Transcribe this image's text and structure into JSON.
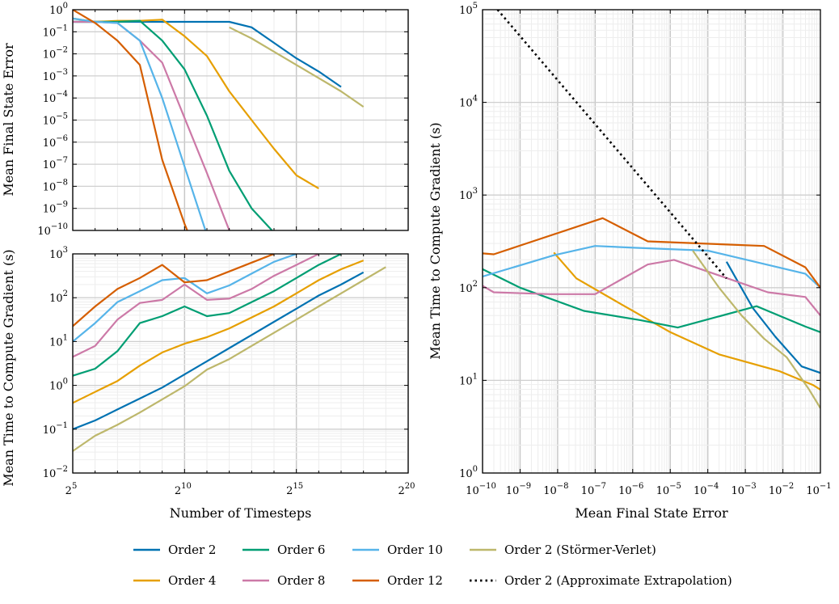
{
  "colors": {
    "Order 2": "#0072B2",
    "Order 4": "#E69F00",
    "Order 6": "#009E73",
    "Order 8": "#CC79A7",
    "Order 10": "#56B4E9",
    "Order 12": "#D55E00",
    "Order 2 (Störmer-Verlet)": "#BDB76B",
    "Order 2 (Approximate Extrapolation)": "#000000"
  },
  "chart_data": [
    {
      "id": "top-left",
      "type": "line",
      "title": "",
      "xlabel": "",
      "ylabel": "Mean Final State Error",
      "xscale": "log2",
      "yscale": "log10",
      "xlim_exp": [
        5,
        20
      ],
      "ylim_exp": [
        -10,
        0
      ],
      "xticks": [],
      "yticks": [
        {
          "base": "10",
          "exp": "0"
        },
        {
          "base": "10",
          "exp": "−1"
        },
        {
          "base": "10",
          "exp": "−2"
        },
        {
          "base": "10",
          "exp": "−3"
        },
        {
          "base": "10",
          "exp": "−4"
        },
        {
          "base": "10",
          "exp": "−5"
        },
        {
          "base": "10",
          "exp": "−6"
        },
        {
          "base": "10",
          "exp": "−7"
        },
        {
          "base": "10",
          "exp": "−8"
        },
        {
          "base": "10",
          "exp": "−9"
        },
        {
          "base": "10",
          "exp": "−10"
        }
      ],
      "series": [
        {
          "name": "Order 2",
          "x": [
            5,
            6,
            7,
            8,
            9,
            10,
            11,
            12,
            13,
            14,
            15,
            16,
            17
          ],
          "y": [
            -0.55,
            -0.55,
            -0.55,
            -0.55,
            -0.55,
            -0.55,
            -0.55,
            -0.55,
            -0.8,
            -1.5,
            -2.2,
            -2.8,
            -3.5
          ]
        },
        {
          "name": "Order 4",
          "x": [
            5,
            6,
            7,
            8,
            9,
            10,
            11,
            12,
            13,
            14,
            15,
            16
          ],
          "y": [
            -0.4,
            -0.55,
            -0.5,
            -0.5,
            -0.45,
            -1.2,
            -2.1,
            -3.7,
            -5.0,
            -6.3,
            -7.5,
            -8.1
          ]
        },
        {
          "name": "Order 6",
          "x": [
            5,
            6,
            7,
            8,
            9,
            10,
            11,
            12,
            13,
            14
          ],
          "y": [
            -0.55,
            -0.55,
            -0.55,
            -0.5,
            -1.4,
            -2.7,
            -4.8,
            -7.3,
            -9.0,
            -10.1
          ]
        },
        {
          "name": "Order 8",
          "x": [
            5,
            6,
            7,
            8,
            9,
            10,
            11,
            12
          ],
          "y": [
            -0.55,
            -0.55,
            -0.6,
            -1.4,
            -2.4,
            -4.9,
            -7.4,
            -10.0
          ]
        },
        {
          "name": "Order 10",
          "x": [
            5,
            6,
            7,
            8,
            9,
            10,
            11
          ],
          "y": [
            -0.4,
            -0.55,
            -0.6,
            -1.4,
            -4.0,
            -7.1,
            -10.2
          ]
        },
        {
          "name": "Order 12",
          "x": [
            5,
            6,
            7,
            8,
            9,
            10,
            10.2
          ],
          "y": [
            0,
            -0.6,
            -1.4,
            -2.5,
            -6.8,
            -9.7,
            -10.2
          ]
        },
        {
          "name": "Order 2 (Störmer-Verlet)",
          "x": [
            12,
            13,
            14,
            15,
            16,
            17,
            18
          ],
          "y": [
            -0.8,
            -1.3,
            -1.9,
            -2.5,
            -3.1,
            -3.7,
            -4.4
          ]
        }
      ]
    },
    {
      "id": "bottom-left",
      "type": "line",
      "title": "",
      "xlabel": "Number of Timesteps",
      "ylabel": "Mean Time to Compute Gradient (s)",
      "xscale": "log2",
      "yscale": "log10",
      "xlim_exp": [
        5,
        20
      ],
      "ylim_exp": [
        -2,
        3
      ],
      "xticks": [
        {
          "base": "2",
          "exp": "5"
        },
        {
          "base": "2",
          "exp": "10"
        },
        {
          "base": "2",
          "exp": "15"
        },
        {
          "base": "2",
          "exp": "20"
        }
      ],
      "yticks": [
        {
          "base": "10",
          "exp": "3"
        },
        {
          "base": "10",
          "exp": "2"
        },
        {
          "base": "10",
          "exp": "1"
        },
        {
          "base": "10",
          "exp": "0"
        },
        {
          "base": "10",
          "exp": "−1"
        },
        {
          "base": "10",
          "exp": "−2"
        }
      ],
      "series": [
        {
          "name": "Order 2",
          "x": [
            5,
            6,
            7,
            8,
            9,
            10,
            11,
            12,
            13,
            14,
            15,
            16,
            17,
            18
          ],
          "y": [
            -1.0,
            -0.8,
            -0.55,
            -0.3,
            -0.05,
            0.25,
            0.55,
            0.85,
            1.15,
            1.45,
            1.75,
            2.05,
            2.3,
            2.58
          ]
        },
        {
          "name": "Order 4",
          "x": [
            5,
            6,
            7,
            8,
            9,
            10,
            11,
            12,
            13,
            14,
            15,
            16,
            17,
            18
          ],
          "y": [
            -0.4,
            -0.15,
            0.1,
            0.45,
            0.75,
            0.95,
            1.1,
            1.3,
            1.55,
            1.8,
            2.1,
            2.4,
            2.65,
            2.85
          ]
        },
        {
          "name": "Order 6",
          "x": [
            5,
            6,
            7,
            8,
            9,
            10,
            11,
            12,
            13,
            14,
            15,
            16,
            17
          ],
          "y": [
            0.22,
            0.38,
            0.78,
            1.42,
            1.58,
            1.8,
            1.58,
            1.65,
            1.9,
            2.15,
            2.45,
            2.75,
            3.0
          ]
        },
        {
          "name": "Order 8",
          "x": [
            5,
            6,
            7,
            8,
            9,
            10,
            11,
            12,
            13,
            14,
            15,
            16
          ],
          "y": [
            0.65,
            0.9,
            1.5,
            1.88,
            1.95,
            2.3,
            1.95,
            1.98,
            2.2,
            2.5,
            2.75,
            3.0
          ]
        },
        {
          "name": "Order 10",
          "x": [
            5,
            6,
            7,
            8,
            9,
            10,
            11,
            12,
            13,
            14,
            15
          ],
          "y": [
            1.0,
            1.42,
            1.9,
            2.15,
            2.4,
            2.45,
            2.1,
            2.28,
            2.55,
            2.82,
            3.0
          ]
        },
        {
          "name": "Order 12",
          "x": [
            5,
            6,
            7,
            8,
            9,
            10,
            11,
            12,
            13,
            14
          ],
          "y": [
            1.35,
            1.8,
            2.2,
            2.45,
            2.75,
            2.35,
            2.4,
            2.6,
            2.8,
            3.0
          ]
        },
        {
          "name": "Order 2 (Störmer-Verlet)",
          "x": [
            5,
            6,
            7,
            8,
            9,
            10,
            11,
            12,
            13,
            14,
            15,
            16,
            17,
            18,
            19
          ],
          "y": [
            -1.5,
            -1.15,
            -0.9,
            -0.62,
            -0.32,
            -0.02,
            0.36,
            0.6,
            0.9,
            1.2,
            1.5,
            1.8,
            2.1,
            2.4,
            2.7
          ]
        }
      ]
    },
    {
      "id": "right",
      "type": "line",
      "title": "",
      "xlabel": "Mean Final State Error",
      "ylabel": "Mean Time to Compute Gradient (s)",
      "xscale": "log10",
      "yscale": "log10",
      "xlim_exp": [
        -10,
        -1
      ],
      "ylim_exp": [
        0,
        5
      ],
      "xticks": [
        {
          "base": "10",
          "exp": "−10"
        },
        {
          "base": "10",
          "exp": "−9"
        },
        {
          "base": "10",
          "exp": "−8"
        },
        {
          "base": "10",
          "exp": "−7"
        },
        {
          "base": "10",
          "exp": "−6"
        },
        {
          "base": "10",
          "exp": "−5"
        },
        {
          "base": "10",
          "exp": "−4"
        },
        {
          "base": "10",
          "exp": "−3"
        },
        {
          "base": "10",
          "exp": "−2"
        },
        {
          "base": "10",
          "exp": "−1"
        }
      ],
      "yticks": [
        {
          "base": "10",
          "exp": "5"
        },
        {
          "base": "10",
          "exp": "4"
        },
        {
          "base": "10",
          "exp": "3"
        },
        {
          "base": "10",
          "exp": "2"
        },
        {
          "base": "10",
          "exp": "1"
        },
        {
          "base": "10",
          "exp": "0"
        }
      ],
      "series": [
        {
          "name": "Order 2",
          "x": [
            -3.5,
            -2.8,
            -2.2,
            -1.5,
            -1.0
          ],
          "y": [
            2.28,
            1.78,
            1.47,
            1.15,
            1.08
          ]
        },
        {
          "name": "Order 4",
          "x": [
            -8.1,
            -7.5,
            -6.3,
            -5.0,
            -3.7,
            -2.1,
            -1.2,
            -1.0
          ],
          "y": [
            2.38,
            2.1,
            1.82,
            1.52,
            1.28,
            1.1,
            0.95,
            0.9
          ]
        },
        {
          "name": "Order 6",
          "x": [
            -10.0,
            -9.0,
            -7.3,
            -5.8,
            -4.8,
            -2.7,
            -1.4,
            -1.0
          ],
          "y": [
            2.2,
            2.0,
            1.75,
            1.65,
            1.57,
            1.8,
            1.58,
            1.52
          ]
        },
        {
          "name": "Order 8",
          "x": [
            -10.0,
            -9.7,
            -8.2,
            -7.0,
            -5.6,
            -4.9,
            -2.4,
            -1.4,
            -1.0
          ],
          "y": [
            2.02,
            1.95,
            1.93,
            1.93,
            2.25,
            2.3,
            1.95,
            1.9,
            1.7
          ]
        },
        {
          "name": "Order 10",
          "x": [
            -10.0,
            -8.1,
            -7.0,
            -5.9,
            -4.0,
            -1.4,
            -1.0
          ],
          "y": [
            2.12,
            2.35,
            2.45,
            2.43,
            2.4,
            2.15,
            2.0
          ]
        },
        {
          "name": "Order 12",
          "x": [
            -10.0,
            -9.7,
            -6.8,
            -5.6,
            -2.5,
            -1.4,
            -1.0
          ],
          "y": [
            2.37,
            2.36,
            2.75,
            2.5,
            2.45,
            2.22,
            2.0
          ]
        },
        {
          "name": "Order 2 (Störmer-Verlet)",
          "x": [
            -4.4,
            -3.7,
            -3.1,
            -2.5,
            -1.9,
            -1.3,
            -1.0
          ],
          "y": [
            2.4,
            2.0,
            1.7,
            1.45,
            1.25,
            0.9,
            0.7
          ]
        },
        {
          "name": "Order 2 (Approximate Extrapolation)",
          "x": [
            -9.6,
            -3.5
          ],
          "y": [
            5.0,
            2.1
          ],
          "dashed": true
        }
      ]
    }
  ],
  "legend": {
    "placement": "bottom-center",
    "entries": [
      "Order 2",
      "Order 6",
      "Order 10",
      "Order 2 (Störmer-Verlet)",
      "Order 4",
      "Order 8",
      "Order 12",
      "Order 2 (Approximate Extrapolation)"
    ]
  }
}
